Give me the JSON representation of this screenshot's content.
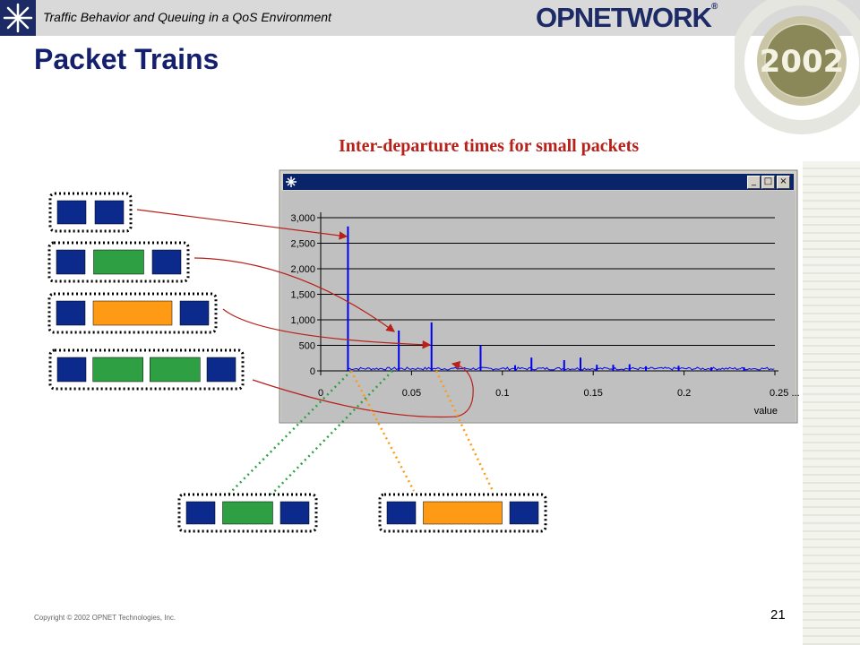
{
  "header": {
    "subtitle": "Traffic Behavior and Queuing in a QoS Environment",
    "brand": "OPNETWORK",
    "brand_mark": "®",
    "badge_year": "2002"
  },
  "slide": {
    "title": "Packet Trains",
    "chart_caption": "Inter-departure times for small packets",
    "copyright": "Copyright © 2002 OPNET Technologies, Inc.",
    "page_number": "21"
  },
  "window": {
    "minimize": "_",
    "maximize": "□",
    "close": "×"
  },
  "colors": {
    "packet_blue": "#0c2a8c",
    "packet_green": "#2ea043",
    "packet_orange": "#ff9a14",
    "series": "#0000ee",
    "arrow": "#b8201a",
    "title_navy": "#14206e"
  },
  "chart_data": {
    "type": "bar",
    "title": "",
    "xlabel": "value",
    "ylabel": "",
    "xlim": [
      0,
      0.25
    ],
    "ylim": [
      0,
      3000
    ],
    "x_ticks": [
      "0",
      "0.05",
      "0.1",
      "0.15",
      "0.2",
      "0.25 ..."
    ],
    "x_tick_values": [
      0,
      0.05,
      0.1,
      0.15,
      0.2,
      0.25
    ],
    "y_ticks": [
      "0",
      "500",
      "1,000",
      "1,500",
      "2,000",
      "2,500",
      "3,000"
    ],
    "y_tick_values": [
      0,
      500,
      1000,
      1500,
      2000,
      2500,
      3000
    ],
    "grid": true,
    "series": [
      {
        "x": [
          0.015,
          0.043,
          0.061,
          0.088,
          0.107,
          0.116,
          0.134,
          0.143,
          0.152,
          0.161,
          0.17,
          0.179,
          0.197,
          0.215,
          0.233
        ],
        "values": [
          2830,
          790,
          950,
          500,
          110,
          260,
          210,
          260,
          120,
          120,
          130,
          90,
          100,
          70,
          70
        ]
      }
    ]
  },
  "packet_trains": [
    {
      "id": "train-1",
      "packets": [
        "blue",
        "blue"
      ]
    },
    {
      "id": "train-2",
      "packets": [
        "blue",
        "green",
        "blue"
      ]
    },
    {
      "id": "train-3",
      "packets": [
        "blue",
        "orange",
        "blue"
      ]
    },
    {
      "id": "train-4",
      "packets": [
        "blue",
        "green",
        "green",
        "blue"
      ]
    },
    {
      "id": "train-5",
      "packets": [
        "blue",
        "green",
        "blue"
      ]
    },
    {
      "id": "train-6",
      "packets": [
        "blue",
        "orange",
        "blue"
      ]
    }
  ]
}
